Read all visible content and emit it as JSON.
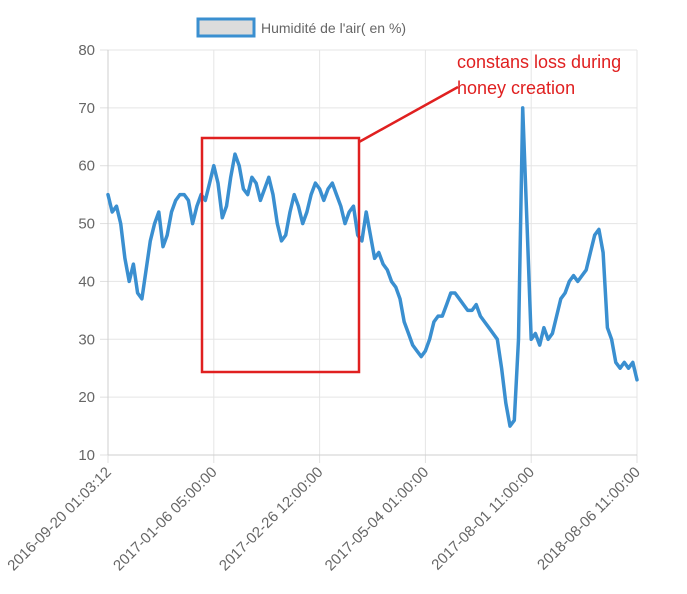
{
  "chart_data": {
    "type": "line",
    "title": "",
    "xlabel": "",
    "ylabel": "",
    "ylim": [
      10,
      80
    ],
    "yticks": [
      10,
      20,
      30,
      40,
      50,
      60,
      70,
      80
    ],
    "x_tick_labels": [
      "2016-09-20 01:03:12",
      "2017-01-06 05:00:00",
      "2017-02-26 12:00:00",
      "2017-05-04 01:00:00",
      "2017-08-01 11:00:00",
      "2018-08-06 11:00:00"
    ],
    "grid": true,
    "legend_position": "top-center",
    "series": [
      {
        "name": "Humidité de l'air( en %)",
        "color": "#3a8fd0",
        "values": [
          55,
          52,
          53,
          50,
          44,
          40,
          43,
          38,
          37,
          42,
          47,
          50,
          52,
          46,
          48,
          52,
          54,
          55,
          55,
          54,
          50,
          53,
          55,
          54,
          57,
          60,
          57,
          51,
          53,
          58,
          62,
          60,
          56,
          55,
          58,
          57,
          54,
          56,
          58,
          55,
          50,
          47,
          48,
          52,
          55,
          53,
          50,
          52,
          55,
          57,
          56,
          54,
          56,
          57,
          55,
          53,
          50,
          52,
          53,
          48,
          47,
          52,
          48,
          44,
          45,
          43,
          42,
          40,
          39,
          37,
          33,
          31,
          29,
          28,
          27,
          28,
          30,
          33,
          34,
          34,
          36,
          38,
          38,
          37,
          36,
          35,
          35,
          36,
          34,
          33,
          32,
          31,
          30,
          25,
          19,
          15,
          16,
          30,
          70,
          50,
          30,
          31,
          29,
          32,
          30,
          31,
          34,
          37,
          38,
          40,
          41,
          40,
          41,
          42,
          45,
          48,
          49,
          45,
          32,
          30,
          26,
          25,
          26,
          25,
          26,
          23
        ]
      }
    ],
    "annotations": [
      {
        "text_line1": "constans loss during",
        "text_line2": "honey creation",
        "color": "#e02020"
      }
    ]
  }
}
